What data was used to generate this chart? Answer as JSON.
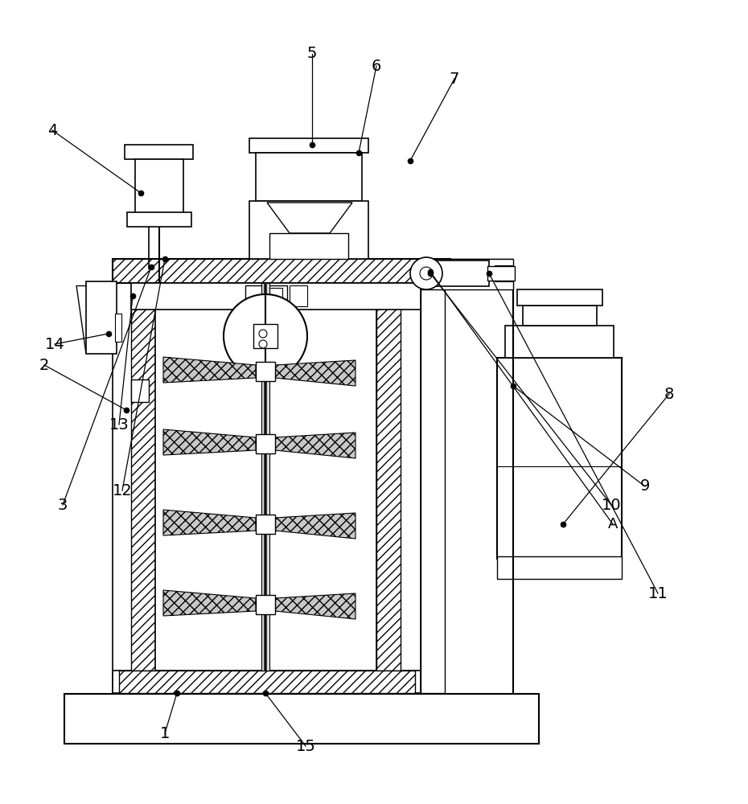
{
  "bg_color": "#ffffff",
  "fig_width": 9.3,
  "fig_height": 10.0,
  "dpi": 100
}
